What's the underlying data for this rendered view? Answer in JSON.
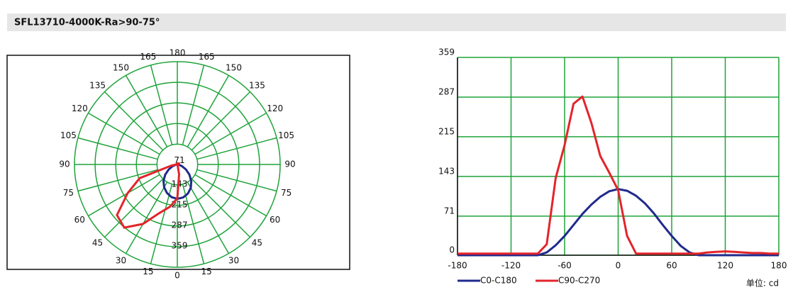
{
  "header": {
    "title": "SFL13710-4000K-Ra>90-75°"
  },
  "chart_data": [
    {
      "type": "polar",
      "angle_ticks": [
        0,
        15,
        30,
        45,
        60,
        75,
        90,
        105,
        120,
        135,
        150,
        165,
        180
      ],
      "rlim": [
        0,
        359
      ],
      "rticks": [
        71,
        143,
        215,
        287,
        359
      ],
      "grid_color": "#1fa33a",
      "x": [
        -180,
        -170,
        -160,
        -150,
        -140,
        -130,
        -120,
        -110,
        -100,
        -90,
        -80,
        -70,
        -60,
        -50,
        -40,
        -30,
        -20,
        -10,
        0,
        10,
        20,
        30,
        40,
        50,
        60,
        70,
        80,
        90,
        100,
        110,
        120,
        130,
        140,
        150,
        160,
        170,
        180
      ],
      "series": [
        {
          "color": "#1f2a8c",
          "values": [
            0,
            0,
            0,
            0,
            0,
            0,
            0,
            0,
            0,
            0,
            5,
            18,
            35,
            55,
            75,
            92,
            106,
            116,
            120,
            117,
            108,
            94,
            76,
            55,
            35,
            17,
            5,
            0,
            0,
            0,
            0,
            0,
            0,
            0,
            0,
            0,
            0
          ]
        },
        {
          "color": "#e3242b",
          "values": [
            3,
            3,
            3,
            3,
            3,
            3,
            3,
            3,
            3,
            3,
            20,
            140,
            200,
            275,
            288,
            240,
            180,
            150,
            118,
            35,
            3,
            3,
            3,
            3,
            3,
            3,
            3,
            3,
            5,
            6,
            7,
            6,
            5,
            4,
            4,
            3,
            3
          ]
        }
      ]
    },
    {
      "type": "line",
      "xlim": [
        -180,
        180
      ],
      "xticks": [
        -180,
        -120,
        -60,
        0,
        60,
        120,
        180
      ],
      "ylim": [
        0,
        359
      ],
      "yticks": [
        0,
        71,
        143,
        215,
        287,
        359
      ],
      "grid": true,
      "grid_color": "#1fa33a",
      "x": [
        -180,
        -170,
        -160,
        -150,
        -140,
        -130,
        -120,
        -110,
        -100,
        -90,
        -80,
        -70,
        -60,
        -50,
        -40,
        -30,
        -20,
        -10,
        0,
        10,
        20,
        30,
        40,
        50,
        60,
        70,
        80,
        90,
        100,
        110,
        120,
        130,
        140,
        150,
        160,
        170,
        180
      ],
      "series": [
        {
          "name": "C0-C180",
          "color": "#1f2a8c",
          "values": [
            0,
            0,
            0,
            0,
            0,
            0,
            0,
            0,
            0,
            0,
            5,
            18,
            35,
            55,
            75,
            92,
            106,
            116,
            120,
            117,
            108,
            94,
            76,
            55,
            35,
            17,
            5,
            0,
            0,
            0,
            0,
            0,
            0,
            0,
            0,
            0,
            0
          ]
        },
        {
          "name": "C90-C270",
          "color": "#e3242b",
          "values": [
            3,
            3,
            3,
            3,
            3,
            3,
            3,
            3,
            3,
            3,
            20,
            140,
            200,
            275,
            288,
            240,
            180,
            150,
            118,
            35,
            3,
            3,
            3,
            3,
            3,
            3,
            3,
            3,
            5,
            6,
            7,
            6,
            5,
            4,
            4,
            3,
            3
          ]
        }
      ],
      "unit_label": "单位: cd"
    }
  ]
}
